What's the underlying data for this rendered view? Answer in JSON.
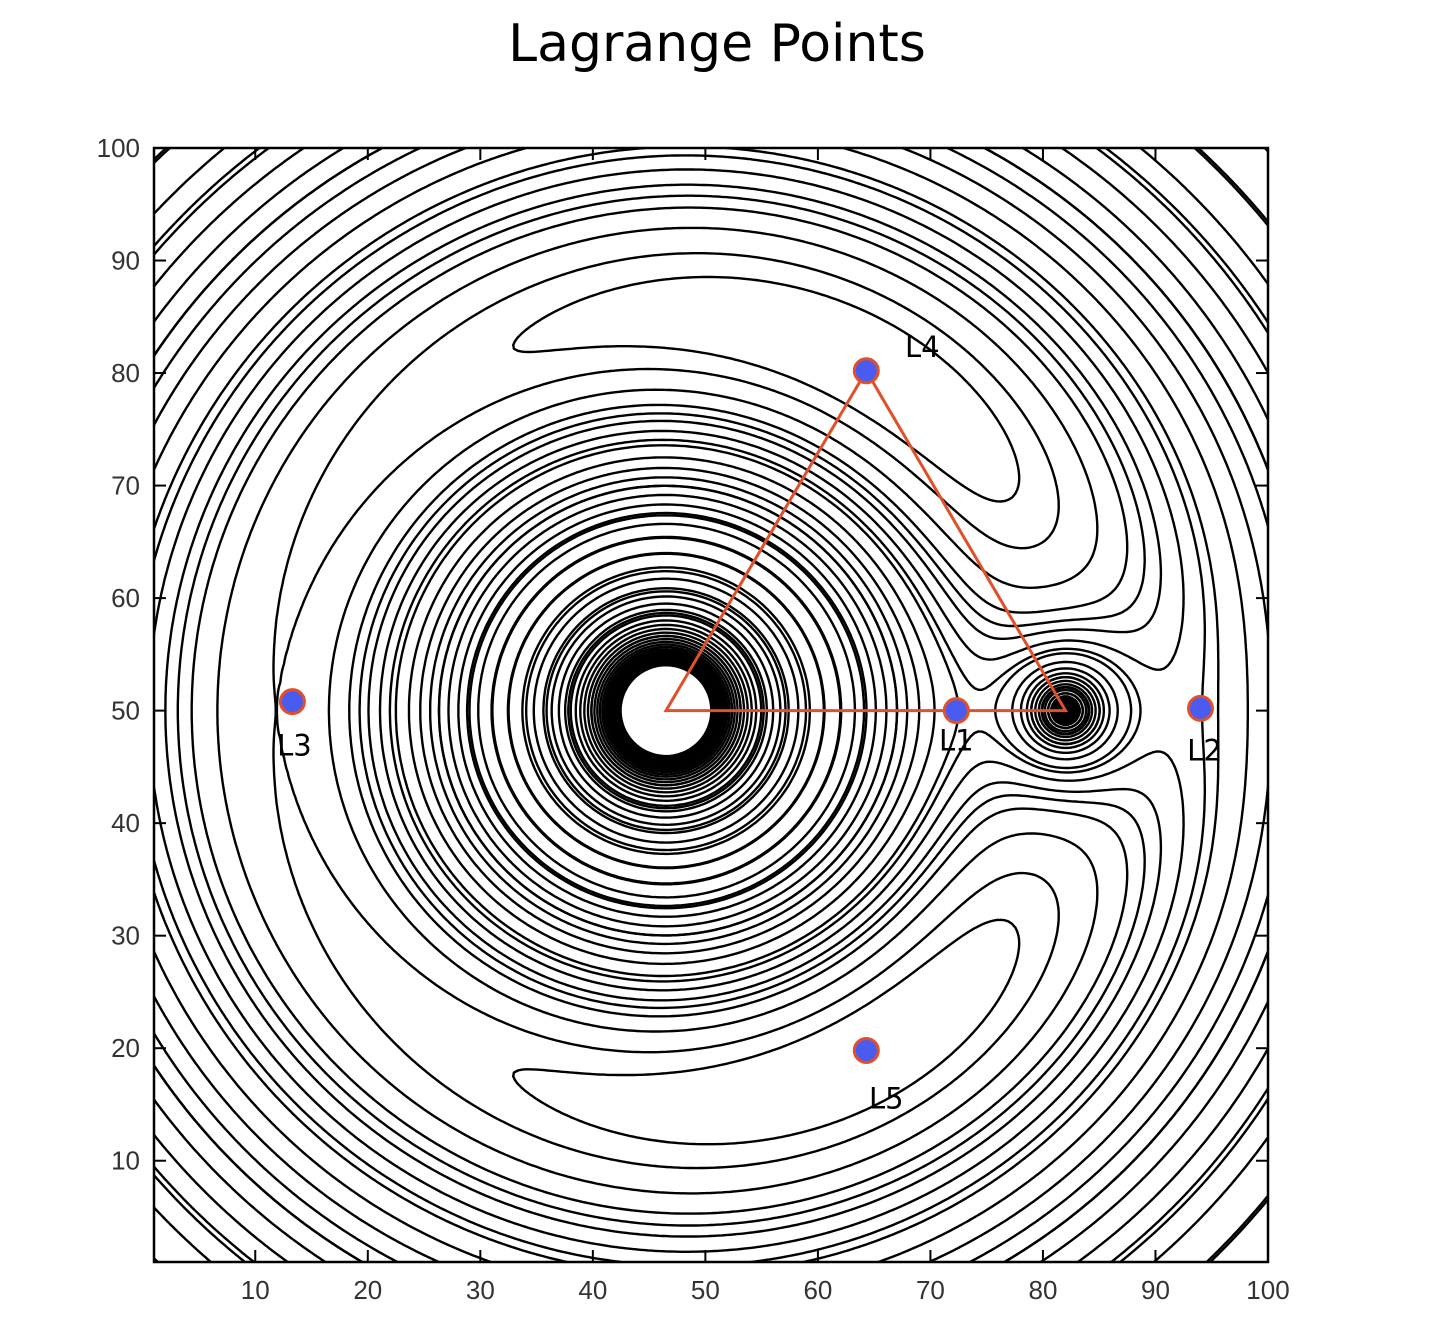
{
  "chart_data": {
    "type": "contour",
    "title": "Lagrange Points",
    "xlabel": "",
    "ylabel": "",
    "xlim": [
      1,
      100
    ],
    "ylim": [
      1,
      100
    ],
    "xticks": [
      10,
      20,
      30,
      40,
      50,
      60,
      70,
      80,
      90,
      100
    ],
    "yticks": [
      10,
      20,
      30,
      40,
      50,
      60,
      70,
      80,
      90,
      100
    ],
    "grid": false,
    "bodies": {
      "primary": {
        "x": 46.5,
        "y": 50
      },
      "secondary": {
        "x": 82,
        "y": 50
      }
    },
    "lagrange_points": [
      {
        "name": "L1",
        "x": 72.3,
        "y": 50
      },
      {
        "name": "L2",
        "x": 94,
        "y": 50.2
      },
      {
        "name": "L3",
        "x": 13.3,
        "y": 50.8
      },
      {
        "name": "L4",
        "x": 64.3,
        "y": 80.2
      },
      {
        "name": "L5",
        "x": 64.3,
        "y": 19.8
      }
    ],
    "triangle": [
      [
        46.5,
        50
      ],
      [
        64.3,
        80.2
      ],
      [
        82,
        50
      ]
    ],
    "colors": {
      "contour": "#000000",
      "triangle": "#e0502a",
      "marker_fill": "#4a5cf0",
      "marker_edge": "#e0502a"
    }
  }
}
